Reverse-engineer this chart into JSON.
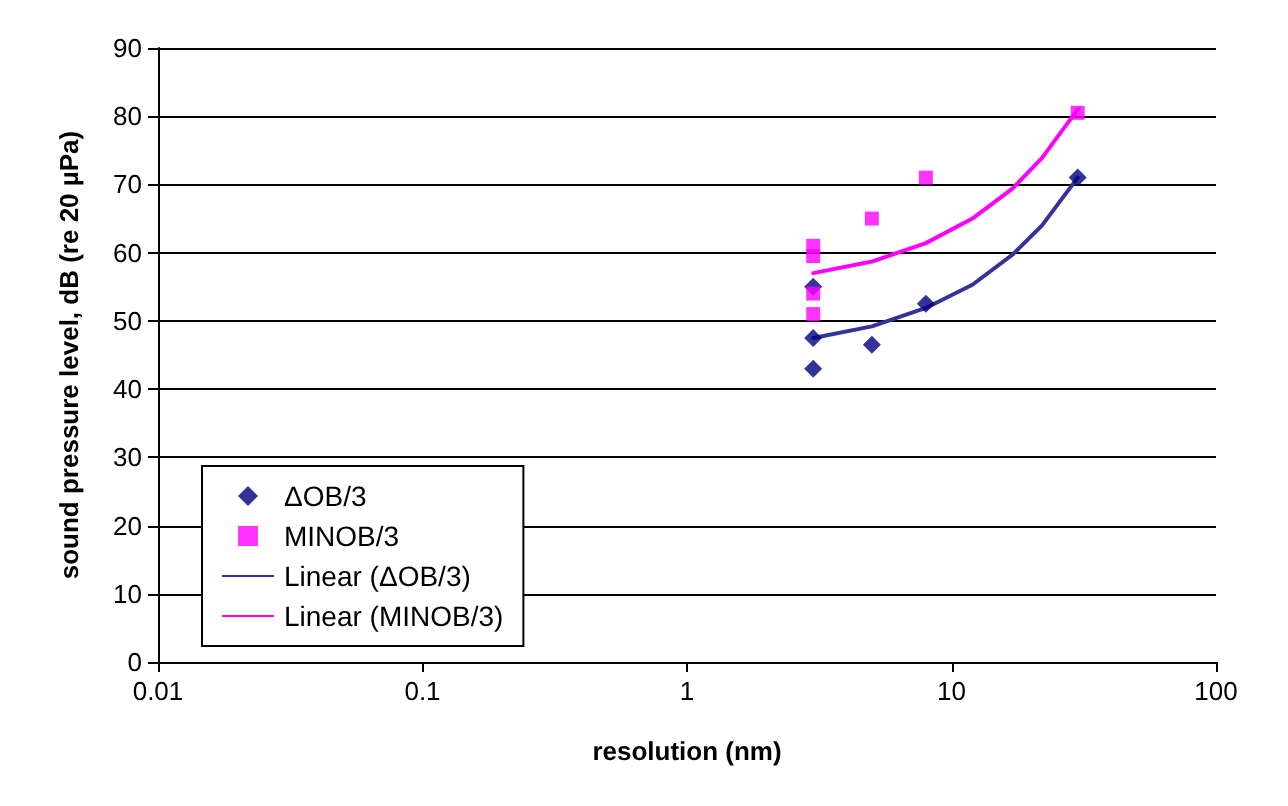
{
  "chart_data": {
    "type": "scatter",
    "xlabel": "resolution (nm)",
    "ylabel": "sound pressure level, dB (re 20 µPa)",
    "log": "x",
    "xlim": [
      0.01,
      100
    ],
    "xticks": [
      0.01,
      0.1,
      1,
      10,
      100
    ],
    "ylim": [
      0,
      90
    ],
    "yticks": [
      0,
      10,
      20,
      30,
      40,
      50,
      60,
      70,
      80,
      90
    ],
    "grid": "y",
    "legend": "bottom left",
    "series": [
      {
        "name": "ΔOB/3",
        "marker": "diamond",
        "color": "#000080",
        "x": [
          3,
          3,
          3,
          5,
          8,
          30
        ],
        "values": [
          55,
          47.5,
          43,
          46.5,
          52.5,
          71
        ]
      },
      {
        "name": "MINOB/3",
        "marker": "square",
        "color": "#ff00ff",
        "x": [
          3,
          3,
          3,
          3,
          5,
          8,
          30
        ],
        "values": [
          61,
          59.5,
          54,
          51,
          65,
          71,
          80.5
        ]
      },
      {
        "name": "Linear (ΔOB/3)",
        "type": "line",
        "marker": "none",
        "color": "#333399",
        "x": [
          3,
          5,
          8,
          12,
          17,
          22,
          30
        ],
        "values": [
          47.5,
          49.2,
          51.9,
          55.3,
          59.7,
          64.0,
          71.0
        ]
      },
      {
        "name": "Linear (MINOB/3)",
        "type": "line",
        "marker": "none",
        "color": "#ff00ff",
        "x": [
          3,
          5,
          8,
          12,
          17,
          22,
          30
        ],
        "values": [
          57,
          58.7,
          61.4,
          65.0,
          69.4,
          73.9,
          81.0
        ]
      }
    ]
  }
}
